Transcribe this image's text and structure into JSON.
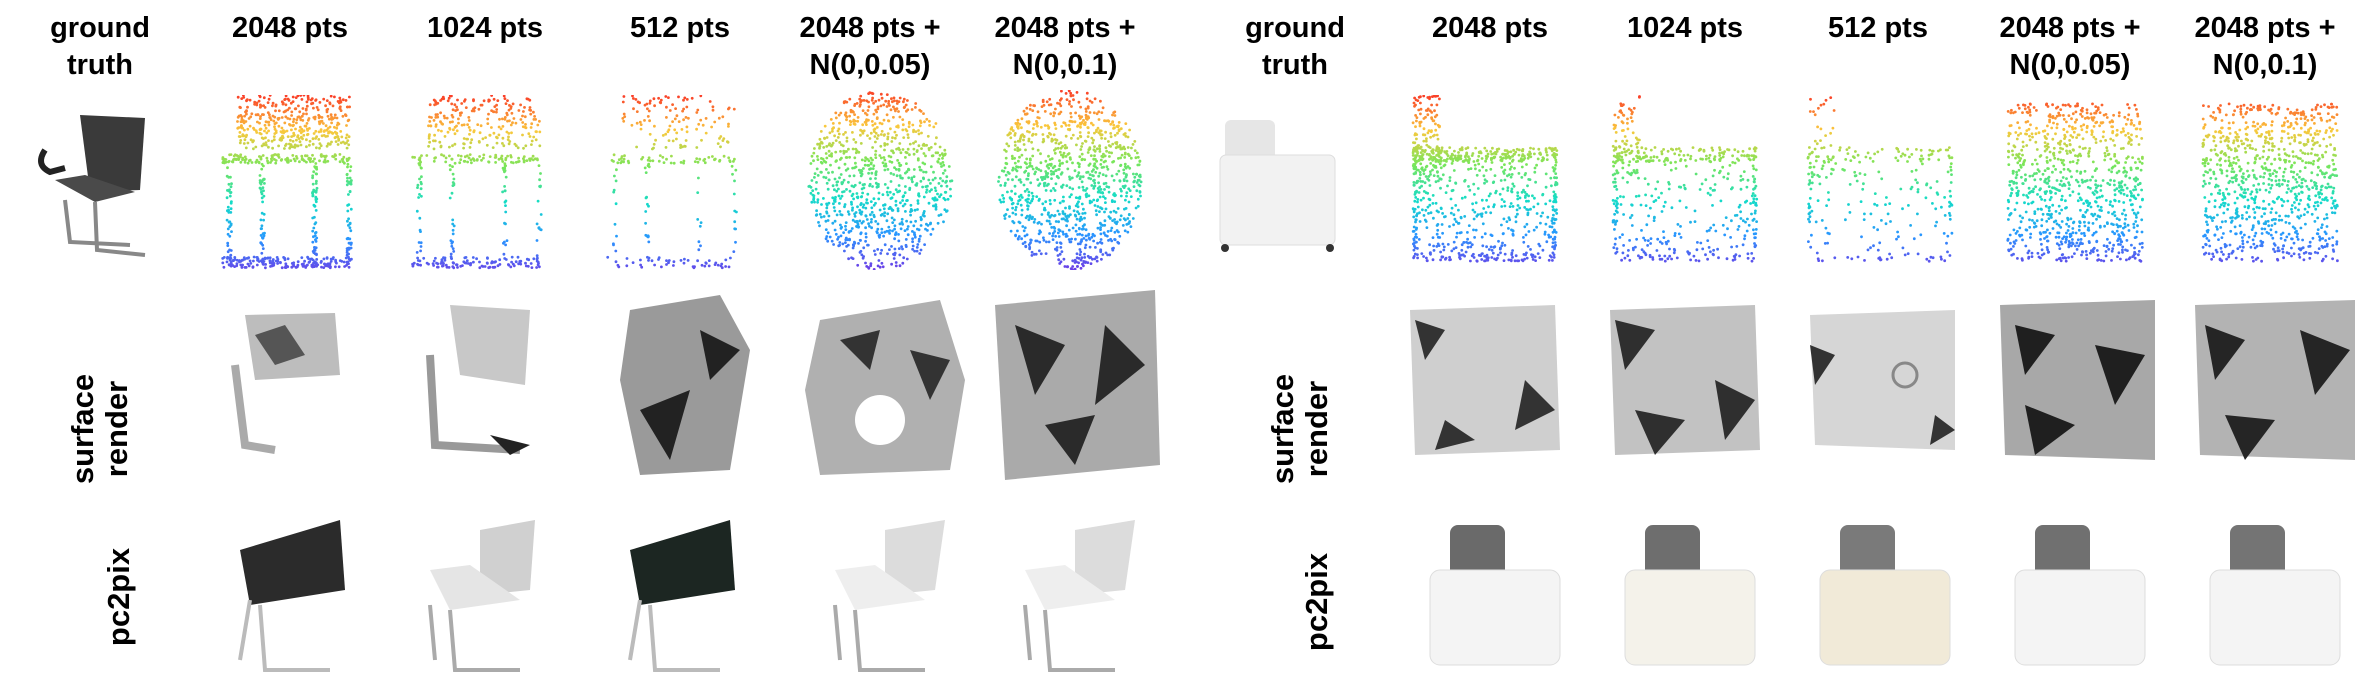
{
  "figure": {
    "column_headers": {
      "ground_truth": "ground\ntruth",
      "pts_2048": "2048 pts",
      "pts_1024": "1024 pts",
      "pts_512": "512 pts",
      "noise_005": "2048 pts +\nN(0,0.05)",
      "noise_01": "2048 pts +\nN(0,0.1)"
    },
    "row_labels": {
      "surface_render": "surface\nrender",
      "pc2pix": "pc2pix"
    },
    "panels": [
      {
        "object": "chair"
      },
      {
        "object": "sofa"
      }
    ]
  }
}
